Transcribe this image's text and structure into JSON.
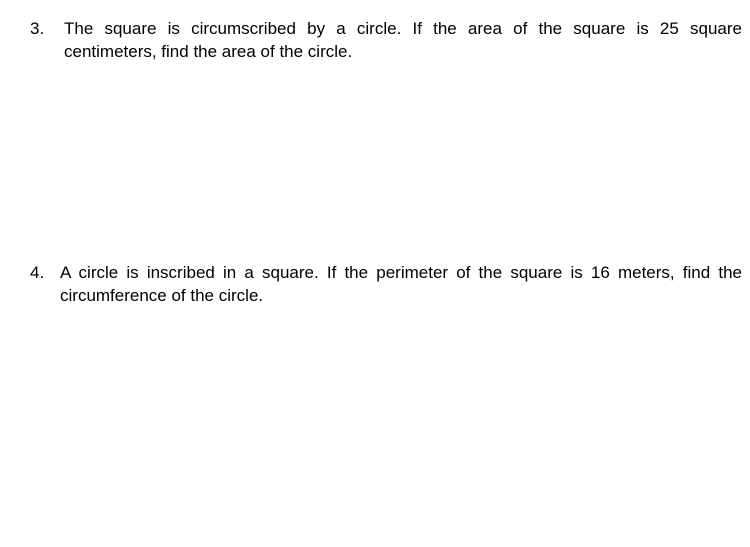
{
  "problems": [
    {
      "number": "3.",
      "text": "The square is circumscribed by a circle. If the area of the square is 25 square centimeters, find the area of the circle."
    },
    {
      "number": "4.",
      "text": "A circle is inscribed in a square. If the perimeter of the square is 16 meters, find the circumference of the circle."
    }
  ],
  "styling": {
    "background_color": "#ffffff",
    "text_color": "#000000",
    "font_family": "Tahoma, Verdana, sans-serif",
    "font_size": 17,
    "line_height": 1.35
  }
}
